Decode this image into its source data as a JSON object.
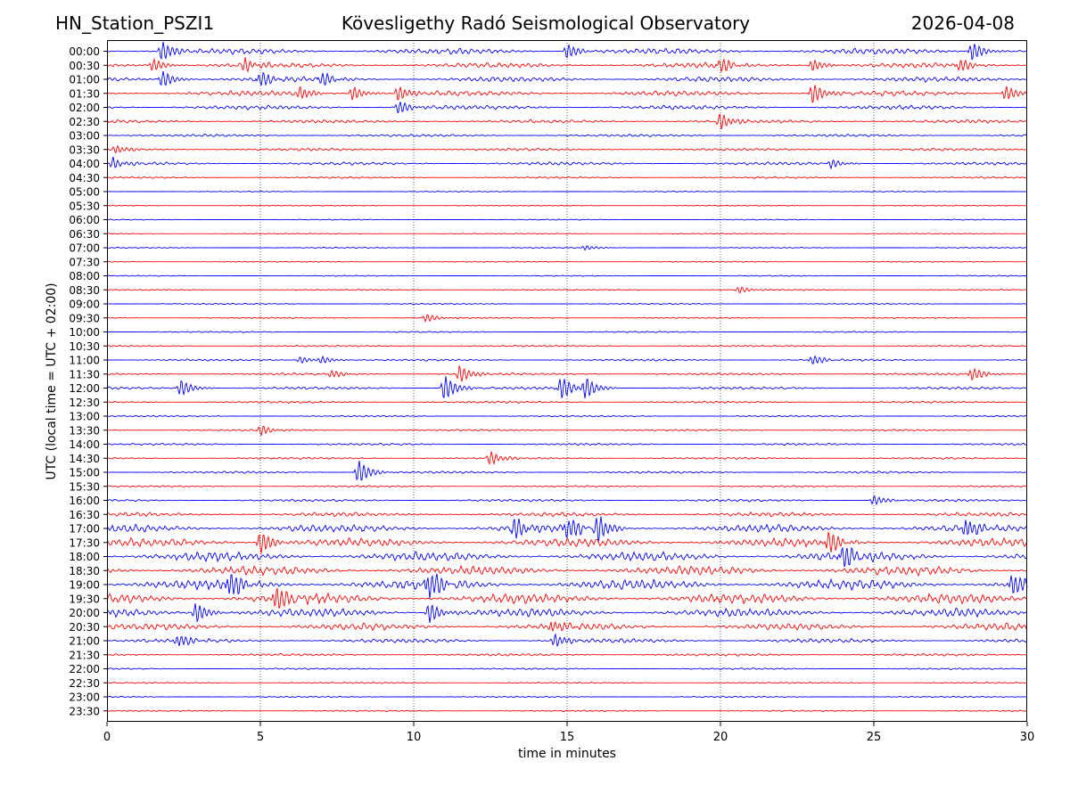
{
  "header": {
    "station": "HN_Station_PSZI1",
    "observatory": "Kövesligethy Radó Seismological Observatory",
    "date": "2026-04-08"
  },
  "chart_data": {
    "type": "line",
    "title": "Kövesligethy Radó Seismological Observatory",
    "xlabel": "time in minutes",
    "ylabel": "UTC (local time = UTC + 02:00)",
    "xlim": [
      0,
      30
    ],
    "x_ticks": [
      0,
      5,
      10,
      15,
      20,
      25,
      30
    ],
    "grid": "vertical dotted at each 5 minutes",
    "rows": [
      "00:00",
      "00:30",
      "01:00",
      "01:30",
      "02:00",
      "02:30",
      "03:00",
      "03:30",
      "04:00",
      "04:30",
      "05:00",
      "05:30",
      "06:00",
      "06:30",
      "07:00",
      "07:30",
      "08:00",
      "08:30",
      "09:00",
      "09:30",
      "10:00",
      "10:30",
      "11:00",
      "11:30",
      "12:00",
      "12:30",
      "13:00",
      "13:30",
      "14:00",
      "14:30",
      "15:00",
      "15:30",
      "16:00",
      "16:30",
      "17:00",
      "17:30",
      "18:00",
      "18:30",
      "19:00",
      "19:30",
      "20:00",
      "20:30",
      "21:00",
      "21:30",
      "22:00",
      "22:30",
      "23:00",
      "23:30"
    ],
    "colors": [
      "#0000ff",
      "#ff0000"
    ],
    "noise_level": [
      3.5,
      3.0,
      3.0,
      3.0,
      2.5,
      2.0,
      1.5,
      1.5,
      1.8,
      1.0,
      0.6,
      0.6,
      0.6,
      0.6,
      0.6,
      0.6,
      0.6,
      0.7,
      0.7,
      0.7,
      0.8,
      0.9,
      1.2,
      1.3,
      1.6,
      1.2,
      0.9,
      1.0,
      1.2,
      1.2,
      1.3,
      1.0,
      1.5,
      2.5,
      4.5,
      5.0,
      5.5,
      5.5,
      6.0,
      6.0,
      5.0,
      4.0,
      2.5,
      1.5,
      1.0,
      0.8,
      0.8,
      0.8
    ],
    "events": [
      {
        "row": 0,
        "t": 1.8,
        "amp": 12
      },
      {
        "row": 0,
        "t": 15,
        "amp": 9
      },
      {
        "row": 0,
        "t": 28.2,
        "amp": 11
      },
      {
        "row": 1,
        "t": 1.5,
        "amp": 8
      },
      {
        "row": 1,
        "t": 4.5,
        "amp": 8
      },
      {
        "row": 1,
        "t": 20,
        "amp": 8
      },
      {
        "row": 1,
        "t": 23,
        "amp": 7
      },
      {
        "row": 1,
        "t": 27.8,
        "amp": 8
      },
      {
        "row": 2,
        "t": 1.8,
        "amp": 10
      },
      {
        "row": 2,
        "t": 5,
        "amp": 9
      },
      {
        "row": 2,
        "t": 7,
        "amp": 8
      },
      {
        "row": 3,
        "t": 6.3,
        "amp": 8
      },
      {
        "row": 3,
        "t": 8,
        "amp": 8
      },
      {
        "row": 3,
        "t": 9.5,
        "amp": 9
      },
      {
        "row": 3,
        "t": 23,
        "amp": 12
      },
      {
        "row": 3,
        "t": 29.3,
        "amp": 9
      },
      {
        "row": 4,
        "t": 9.5,
        "amp": 8
      },
      {
        "row": 5,
        "t": 20,
        "amp": 10
      },
      {
        "row": 7,
        "t": 0.3,
        "amp": 5
      },
      {
        "row": 8,
        "t": 0.2,
        "amp": 6
      },
      {
        "row": 8,
        "t": 23.6,
        "amp": 5
      },
      {
        "row": 14,
        "t": 15.6,
        "amp": 3
      },
      {
        "row": 17,
        "t": 20.6,
        "amp": 4
      },
      {
        "row": 19,
        "t": 10.4,
        "amp": 5
      },
      {
        "row": 22,
        "t": 6.3,
        "amp": 4
      },
      {
        "row": 22,
        "t": 7.0,
        "amp": 4
      },
      {
        "row": 22,
        "t": 23,
        "amp": 6
      },
      {
        "row": 23,
        "t": 7.3,
        "amp": 5
      },
      {
        "row": 23,
        "t": 11.5,
        "amp": 10
      },
      {
        "row": 23,
        "t": 28.2,
        "amp": 8
      },
      {
        "row": 24,
        "t": 2.4,
        "amp": 10
      },
      {
        "row": 24,
        "t": 11,
        "amp": 15
      },
      {
        "row": 24,
        "t": 14.8,
        "amp": 14
      },
      {
        "row": 24,
        "t": 15.6,
        "amp": 12
      },
      {
        "row": 27,
        "t": 5.0,
        "amp": 6
      },
      {
        "row": 29,
        "t": 12.5,
        "amp": 8
      },
      {
        "row": 30,
        "t": 8.2,
        "amp": 14
      },
      {
        "row": 32,
        "t": 25,
        "amp": 6
      },
      {
        "row": 34,
        "t": 13.3,
        "amp": 12
      },
      {
        "row": 34,
        "t": 15,
        "amp": 14
      },
      {
        "row": 34,
        "t": 16,
        "amp": 16
      },
      {
        "row": 34,
        "t": 28,
        "amp": 12
      },
      {
        "row": 35,
        "t": 5,
        "amp": 14
      },
      {
        "row": 35,
        "t": 23.5,
        "amp": 14
      },
      {
        "row": 36,
        "t": 24,
        "amp": 14
      },
      {
        "row": 38,
        "t": 4,
        "amp": 16
      },
      {
        "row": 38,
        "t": 10.5,
        "amp": 18
      },
      {
        "row": 38,
        "t": 29.5,
        "amp": 14
      },
      {
        "row": 39,
        "t": 5.5,
        "amp": 16
      },
      {
        "row": 40,
        "t": 2.9,
        "amp": 12
      },
      {
        "row": 40,
        "t": 10.5,
        "amp": 12
      },
      {
        "row": 41,
        "t": 14.5,
        "amp": 8
      },
      {
        "row": 42,
        "t": 2.3,
        "amp": 8
      },
      {
        "row": 42,
        "t": 14.6,
        "amp": 8
      }
    ]
  }
}
